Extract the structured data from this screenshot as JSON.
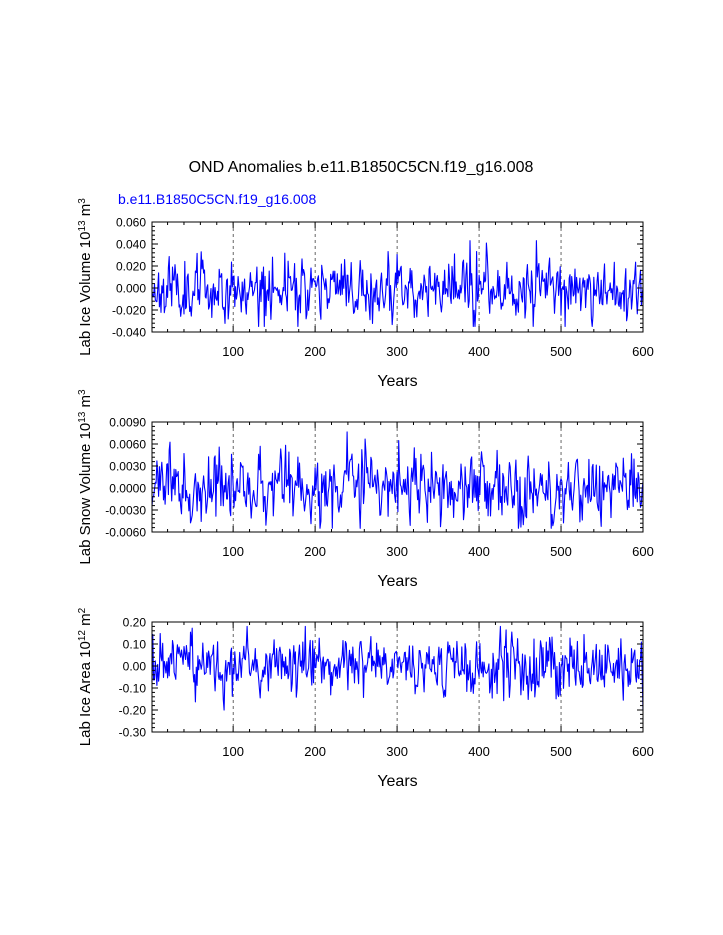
{
  "figure": {
    "title": "OND Anomalies b.e11.B1850C5CN.f19_g16.008",
    "case_label": "b.e11.B1850C5CN.f19_g16.008",
    "line_color": "#0000ff",
    "grid_color": "#000000"
  },
  "chart_data": [
    {
      "type": "line",
      "name": "lab-ice-volume",
      "ylabel_main": "Lab Ice Volume 10",
      "ylabel_exp": "13",
      "ylabel_unit": " m",
      "ylabel_unit_exp": "3",
      "xlabel": "Years",
      "xlim": [
        1,
        600
      ],
      "xticks": [
        100,
        200,
        300,
        400,
        500,
        600
      ],
      "ylim": [
        -0.04,
        0.06
      ],
      "yticks": [
        -0.04,
        -0.02,
        0.0,
        0.02,
        0.04,
        0.06
      ],
      "ytick_labels": [
        "-0.040",
        "-0.020",
        "0.000",
        "0.020",
        "0.040",
        "0.060"
      ],
      "gridlines_x": [
        100,
        200,
        300,
        400,
        500
      ],
      "series": [
        {
          "name": "b.e11.B1850C5CN.f19_g16.008",
          "amplitude": 0.013,
          "range": [
            -0.035,
            0.043
          ],
          "seed": 11
        }
      ]
    },
    {
      "type": "line",
      "name": "lab-snow-volume",
      "ylabel_main": "Lab Snow Volume 10",
      "ylabel_exp": "13",
      "ylabel_unit": " m",
      "ylabel_unit_exp": "3",
      "xlabel": "Years",
      "xlim": [
        1,
        600
      ],
      "xticks": [
        100,
        200,
        300,
        400,
        500,
        600
      ],
      "ylim": [
        -0.006,
        0.009
      ],
      "yticks": [
        -0.006,
        -0.003,
        0.0,
        0.003,
        0.006,
        0.009
      ],
      "ytick_labels": [
        "-0.0060",
        "-0.0030",
        "0.0000",
        "0.0030",
        "0.0060",
        "0.0090"
      ],
      "gridlines_x": [
        100,
        200,
        300,
        400,
        500
      ],
      "series": [
        {
          "name": "b.e11.B1850C5CN.f19_g16.008",
          "amplitude": 0.0022,
          "range": [
            -0.0055,
            0.0088
          ],
          "seed": 23
        }
      ]
    },
    {
      "type": "line",
      "name": "lab-ice-area",
      "ylabel_main": "Lab Ice Area 10",
      "ylabel_exp": "12",
      "ylabel_unit": " m",
      "ylabel_unit_exp": "2",
      "xlabel": "Years",
      "xlim": [
        1,
        600
      ],
      "xticks": [
        100,
        200,
        300,
        400,
        500,
        600
      ],
      "ylim": [
        -0.3,
        0.2
      ],
      "yticks": [
        -0.3,
        -0.2,
        -0.1,
        0.0,
        0.1,
        0.2
      ],
      "ytick_labels": [
        "-0.30",
        "-0.20",
        "-0.10",
        "0.00",
        "0.10",
        "0.20"
      ],
      "gridlines_x": [
        100,
        200,
        300,
        400,
        500
      ],
      "series": [
        {
          "name": "b.e11.B1850C5CN.f19_g16.008",
          "amplitude": 0.065,
          "range": [
            -0.21,
            0.18
          ],
          "seed": 37
        }
      ]
    }
  ]
}
